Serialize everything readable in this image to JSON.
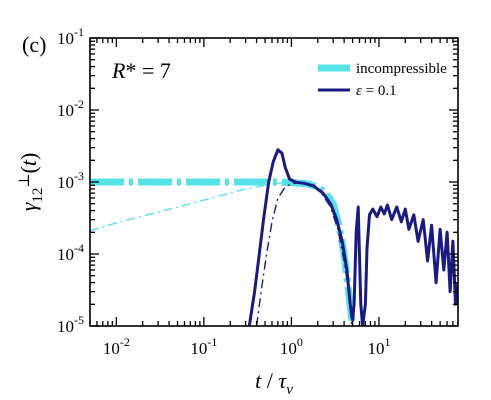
{
  "chart_data": {
    "type": "line",
    "panel_label": "(c)",
    "annotation": "R* = 7",
    "xlabel": "t / τ_ν",
    "ylabel": "γ_12^⊥(t)",
    "xscale": "log",
    "yscale": "log",
    "xlim": [
      0.005,
      80
    ],
    "ylim": [
      1e-05,
      0.1
    ],
    "x_ticks": [
      "10^-2",
      "10^-1",
      "10^0",
      "10^1"
    ],
    "y_ticks": [
      "10^-5",
      "10^-4",
      "10^-3",
      "10^-2",
      "10^-1"
    ],
    "legend_position": "top-right",
    "colors": {
      "cyan": "#55e3e8",
      "navy": "#1a1a86"
    },
    "series": [
      {
        "name": "incompressible",
        "style": "thick dash-dot",
        "color": "#55e3e8",
        "x": [
          0.005,
          0.05,
          0.3,
          0.6,
          1.0,
          1.5,
          2.0,
          2.5,
          3.0,
          3.5,
          4.0,
          4.5,
          5.0
        ],
        "y": [
          0.001,
          0.001,
          0.001,
          0.001,
          0.00098,
          0.00095,
          0.00085,
          0.0007,
          0.0005,
          0.00025,
          0.0001,
          3e-05,
          1e-05
        ]
      },
      {
        "name": "",
        "style": "thin dash-dot",
        "color": "#55e3e8",
        "x": [
          0.005,
          0.01,
          0.05,
          0.1,
          0.3,
          0.6,
          1.0
        ],
        "y": [
          0.00021,
          0.00027,
          0.00045,
          0.00056,
          0.0008,
          0.00094,
          0.001
        ]
      },
      {
        "name": "ε = 0.1",
        "style": "thick solid",
        "color": "#1a1a86",
        "x": [
          0.33,
          0.38,
          0.43,
          0.48,
          0.55,
          0.62,
          0.7,
          0.78,
          0.85,
          0.95,
          1.1,
          1.4,
          1.8,
          2.3,
          2.8,
          3.3,
          3.8,
          4.3,
          4.7,
          5.0,
          5.2,
          5.5,
          5.8,
          6.2,
          6.5,
          7.0,
          7.3,
          7.8,
          8.5,
          9.5,
          10.5,
          11.5,
          12.5,
          14,
          16,
          18,
          20,
          22,
          25,
          28,
          32,
          36,
          40,
          45,
          50,
          55,
          60,
          65,
          70,
          75,
          80
        ],
        "y": [
          1e-05,
          3e-05,
          0.0001,
          0.0003,
          0.001,
          0.0019,
          0.0028,
          0.0025,
          0.0016,
          0.0011,
          0.001,
          0.00096,
          0.00088,
          0.0007,
          0.0005,
          0.0003,
          0.00015,
          6e-05,
          2e-05,
          1.2e-05,
          2e-05,
          0.0002,
          0.00045,
          2e-05,
          1e-05,
          2e-05,
          0.00012,
          0.00035,
          0.00042,
          0.00033,
          0.00045,
          0.00036,
          0.00048,
          0.0003,
          0.00045,
          0.00028,
          0.00042,
          0.00022,
          0.00035,
          0.00015,
          0.0003,
          8e-05,
          0.00025,
          4e-05,
          0.00022,
          6e-05,
          0.0002,
          3e-05,
          0.00015,
          2e-05,
          4e-05
        ]
      },
      {
        "name": "",
        "style": "thin dash-dot",
        "color": "#1a1a86",
        "x": [
          0.4,
          0.45,
          0.52,
          0.6,
          0.7,
          0.85,
          1.0,
          1.3,
          1.7,
          2.2,
          2.8,
          3.4,
          4.0,
          4.5,
          4.9
        ],
        "y": [
          1e-05,
          3e-05,
          0.0001,
          0.00028,
          0.0006,
          0.00085,
          0.00095,
          0.00098,
          0.0009,
          0.0007,
          0.00045,
          0.00022,
          8e-05,
          3e-05,
          1e-05
        ]
      }
    ]
  }
}
